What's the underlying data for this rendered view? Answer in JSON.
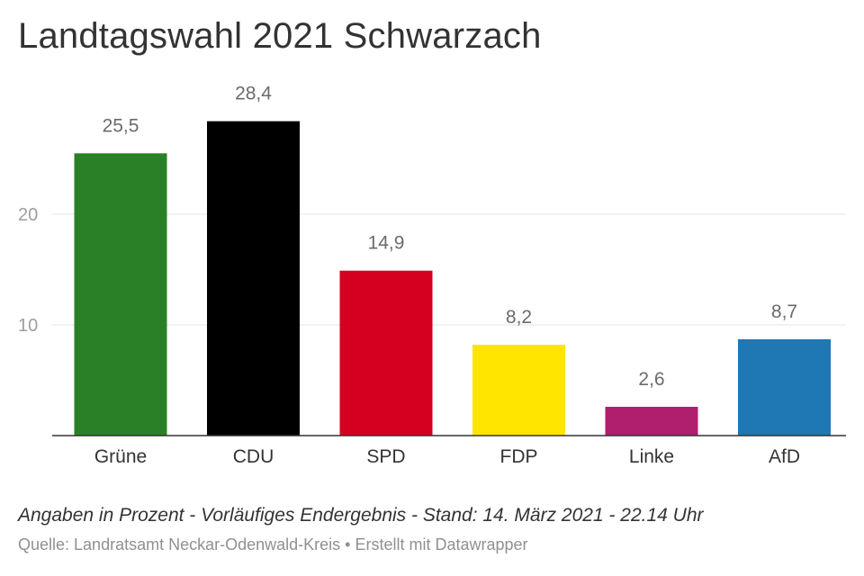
{
  "chart_data": {
    "type": "bar",
    "title": "Landtagswahl 2021 Schwarzach",
    "categories": [
      "Grüne",
      "CDU",
      "SPD",
      "FDP",
      "Linke",
      "AfD"
    ],
    "values": [
      25.5,
      28.4,
      14.9,
      8.2,
      2.6,
      8.7
    ],
    "value_labels": [
      "25,5",
      "28,4",
      "14,9",
      "8,2",
      "2,6",
      "8,7"
    ],
    "colors": [
      "#2a8026",
      "#000000",
      "#d50020",
      "#ffe500",
      "#b01e6e",
      "#1f77b4"
    ],
    "yticks": [
      10,
      20
    ],
    "ylim": [
      0,
      30
    ],
    "grid": true,
    "xlabel": "",
    "ylabel": ""
  },
  "footer": {
    "note": "Angaben in Prozent - Vorläufiges Endergebnis - Stand: 14. März 2021 - 22.14 Uhr",
    "source": "Quelle: Landratsamt Neckar-Odenwald-Kreis • Erstellt mit Datawrapper"
  }
}
